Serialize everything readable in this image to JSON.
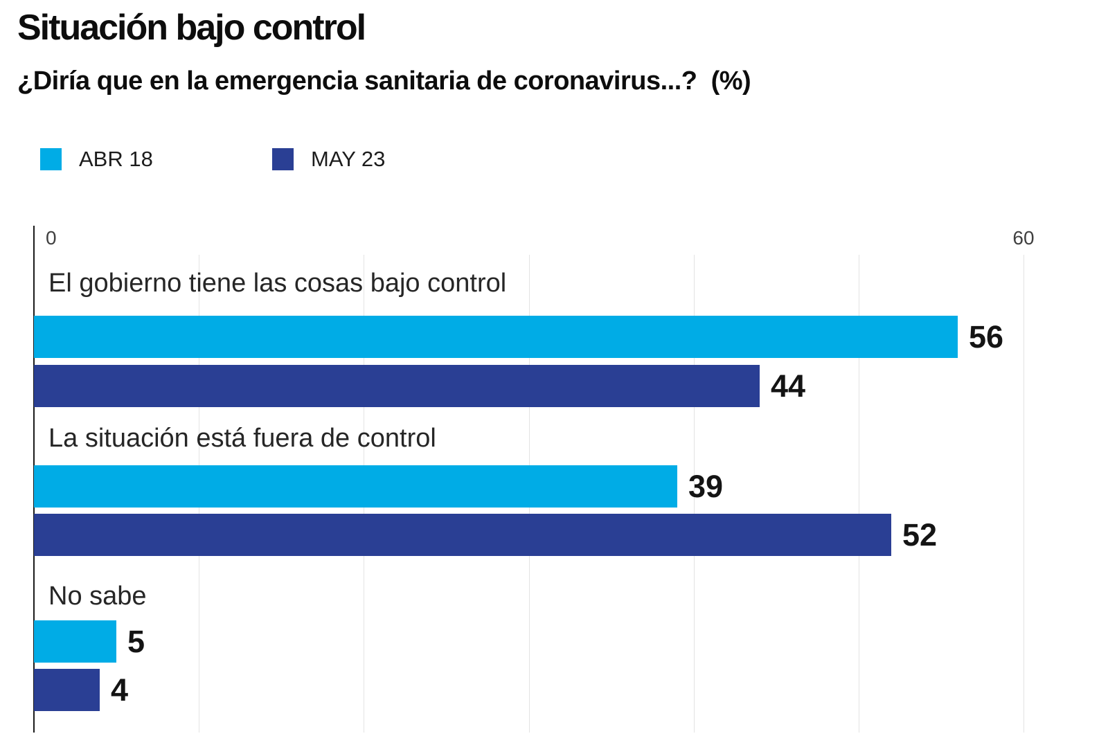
{
  "header": {
    "title": "Situación bajo control",
    "subtitle": "¿Diría que en la emergencia sanitaria de coronavirus...?  (%)"
  },
  "legend": {
    "items": [
      {
        "label": "ABR 18",
        "color": "#00ACE6"
      },
      {
        "label": "MAY 23",
        "color": "#2A3F94"
      }
    ]
  },
  "colors": {
    "series_abr18": "#00ACE6",
    "series_may23": "#2A3F94",
    "axis_line": "#1a1a1a",
    "gridline": "#e3e3e3",
    "tick_text": "#404040",
    "category_text": "#262626",
    "value_text": "#141414",
    "background": "#ffffff"
  },
  "chart_data": {
    "type": "bar",
    "orientation": "horizontal",
    "title": "Situación bajo control",
    "subtitle": "¿Diría que en la emergencia sanitaria de coronavirus...?  (%)",
    "categories": [
      "El gobierno tiene las cosas bajo control",
      "La situación está fuera de control",
      "No sabe"
    ],
    "series": [
      {
        "name": "ABR 18",
        "color": "#00ACE6",
        "values": [
          56,
          39,
          5
        ]
      },
      {
        "name": "MAY 23",
        "color": "#2A3F94",
        "values": [
          44,
          52,
          4
        ]
      }
    ],
    "xlim": [
      0,
      60
    ],
    "ticks": [
      {
        "value": 0,
        "label": "0"
      },
      {
        "value": 60,
        "label": "60"
      }
    ],
    "gridline_values": [
      10,
      20,
      30,
      40,
      50,
      60
    ],
    "grid": true,
    "legend_position": "top",
    "value_labels": true
  }
}
